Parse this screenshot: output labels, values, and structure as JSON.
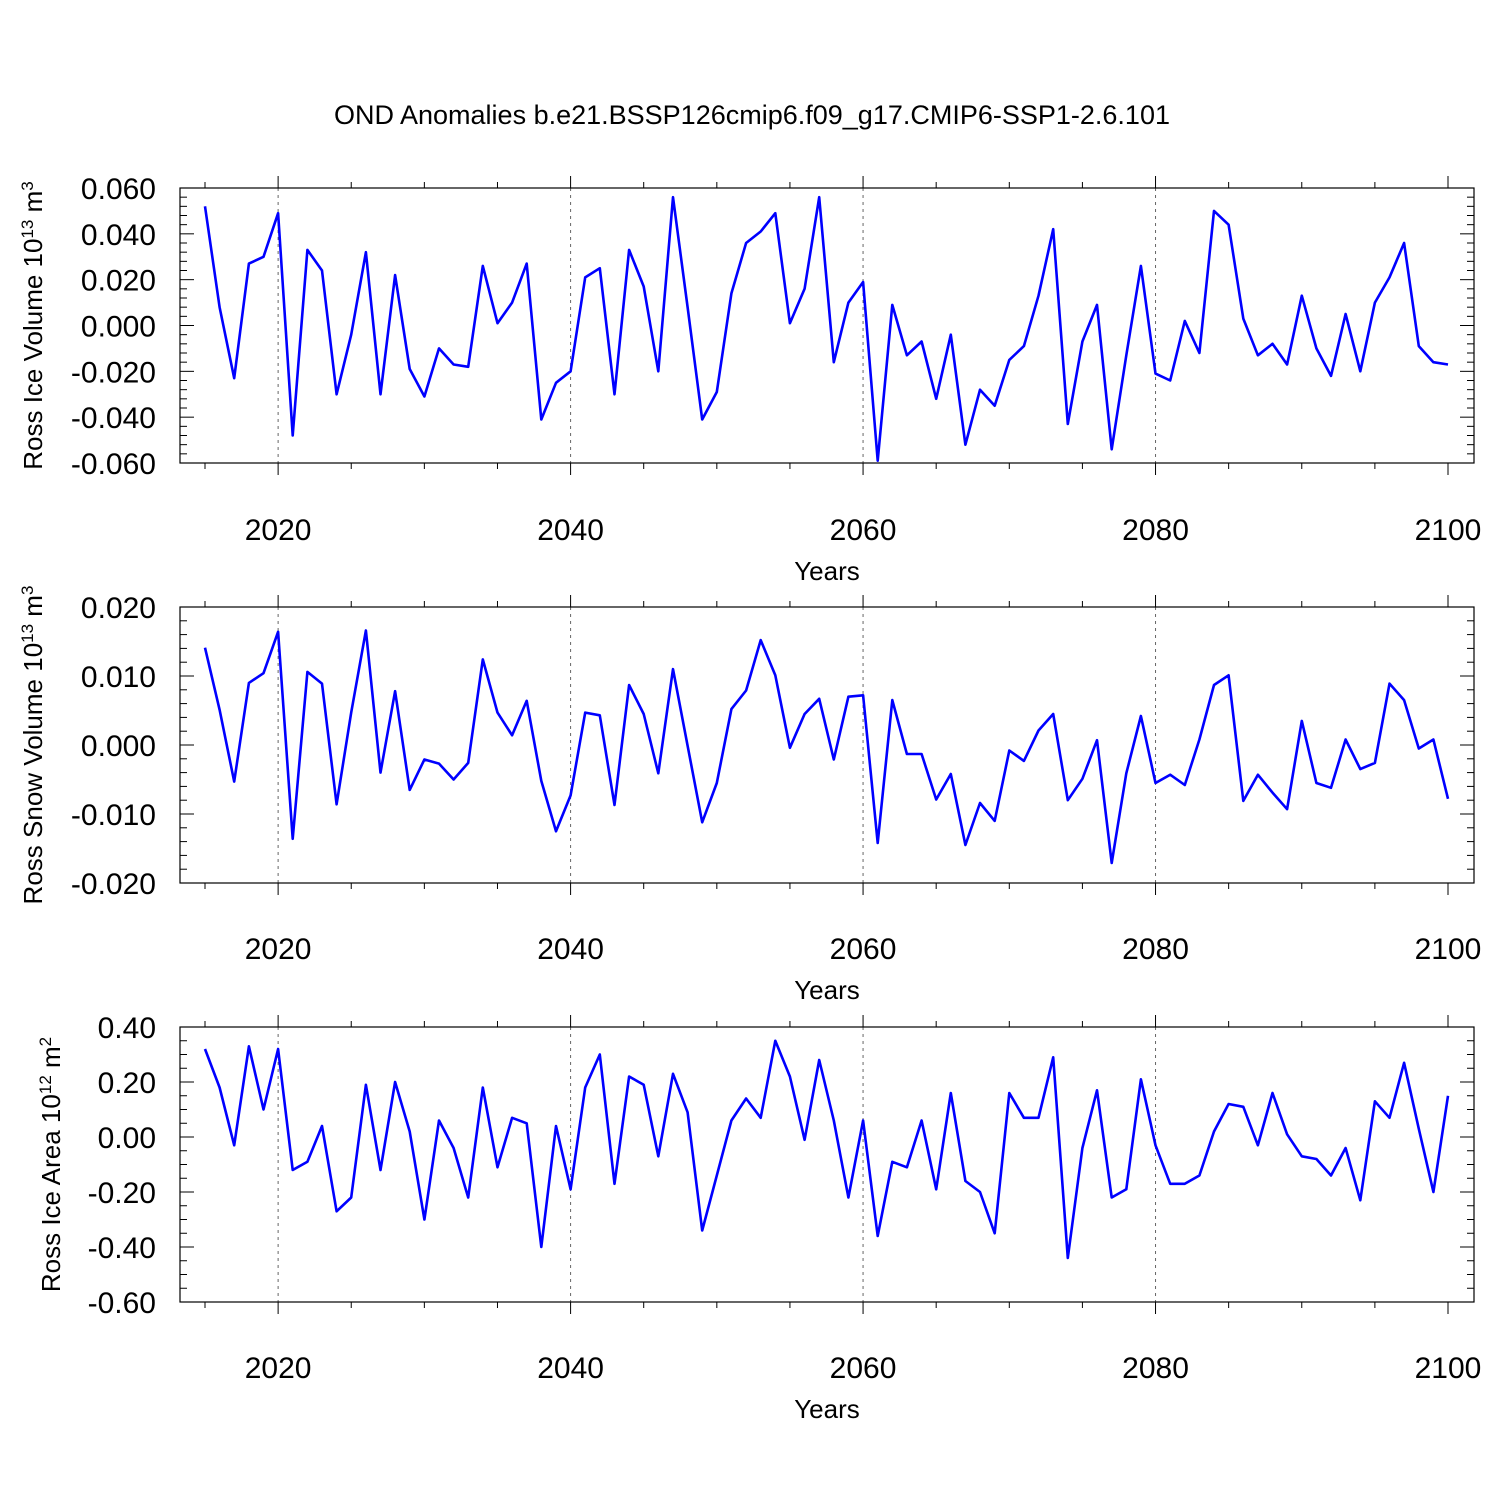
{
  "title": "OND Anomalies b.e21.BSSP126cmip6.f09_g17.CMIP6-SSP1-2.6.101",
  "colors": {
    "line": "#0000ff",
    "axis": "#000000",
    "grid": "#666666",
    "background": "#ffffff"
  },
  "chart_data": [
    {
      "type": "line",
      "ylabel": "Ross Ice Volume 10",
      "ylabel_exp": "13",
      "ylabel_unit": " m",
      "ylabel_unit_exp": "3",
      "xlabel": "Years",
      "xlim": [
        2015,
        2100
      ],
      "ylim": [
        -0.06,
        0.06
      ],
      "yticks": [
        -0.06,
        -0.04,
        -0.02,
        0.0,
        0.02,
        0.04,
        0.06
      ],
      "ytick_labels": [
        "-0.060",
        "-0.040",
        "-0.020",
        "0.000",
        "0.020",
        "0.040",
        "0.060"
      ],
      "xticks": [
        2020,
        2040,
        2060,
        2080,
        2100
      ],
      "xtick_labels": [
        "2020",
        "2040",
        "2060",
        "2080",
        "2100"
      ],
      "grid": "vertical dashed at major x ticks",
      "series": [
        {
          "name": "Ross Ice Volume",
          "x": [
            2015,
            2016,
            2017,
            2018,
            2019,
            2020,
            2021,
            2022,
            2023,
            2024,
            2025,
            2026,
            2027,
            2028,
            2029,
            2030,
            2031,
            2032,
            2033,
            2034,
            2035,
            2036,
            2037,
            2038,
            2039,
            2040,
            2041,
            2042,
            2043,
            2044,
            2045,
            2046,
            2047,
            2048,
            2049,
            2050,
            2051,
            2052,
            2053,
            2054,
            2055,
            2056,
            2057,
            2058,
            2059,
            2060,
            2061,
            2062,
            2063,
            2064,
            2065,
            2066,
            2067,
            2068,
            2069,
            2070,
            2071,
            2072,
            2073,
            2074,
            2075,
            2076,
            2077,
            2078,
            2079,
            2080,
            2081,
            2082,
            2083,
            2084,
            2085,
            2086,
            2087,
            2088,
            2089,
            2090,
            2091,
            2092,
            2093,
            2094,
            2095,
            2096,
            2097,
            2098,
            2099,
            2100
          ],
          "values": [
            0.052,
            0.008,
            -0.023,
            0.027,
            0.03,
            0.049,
            -0.048,
            0.033,
            0.024,
            -0.03,
            -0.004,
            0.032,
            -0.03,
            0.022,
            -0.019,
            -0.031,
            -0.01,
            -0.017,
            -0.018,
            0.026,
            0.001,
            0.01,
            0.027,
            -0.041,
            -0.025,
            -0.02,
            0.021,
            0.025,
            -0.03,
            0.033,
            0.017,
            -0.02,
            0.056,
            0.008,
            -0.041,
            -0.029,
            0.014,
            0.036,
            0.041,
            0.049,
            0.001,
            0.016,
            0.056,
            -0.016,
            0.01,
            0.019,
            -0.059,
            0.009,
            -0.013,
            -0.007,
            -0.032,
            -0.004,
            -0.052,
            -0.028,
            -0.035,
            -0.015,
            -0.009,
            0.013,
            0.042,
            -0.043,
            -0.007,
            0.009,
            -0.054,
            -0.013,
            0.026,
            -0.021,
            -0.024,
            0.002,
            -0.012,
            0.05,
            0.044,
            0.003,
            -0.013,
            -0.008,
            -0.017,
            0.013,
            -0.01,
            -0.022,
            0.005,
            -0.02,
            0.01,
            0.021,
            0.036,
            -0.009,
            -0.016,
            -0.017
          ]
        }
      ]
    },
    {
      "type": "line",
      "ylabel": "Ross Snow Volume 10",
      "ylabel_exp": "13",
      "ylabel_unit": " m",
      "ylabel_unit_exp": "3",
      "xlabel": "Years",
      "xlim": [
        2015,
        2100
      ],
      "ylim": [
        -0.02,
        0.02
      ],
      "yticks": [
        -0.02,
        -0.01,
        0.0,
        0.01,
        0.02
      ],
      "ytick_labels": [
        "-0.020",
        "-0.010",
        "0.000",
        "0.010",
        "0.020"
      ],
      "xticks": [
        2020,
        2040,
        2060,
        2080,
        2100
      ],
      "xtick_labels": [
        "2020",
        "2040",
        "2060",
        "2080",
        "2100"
      ],
      "grid": "vertical dashed at major x ticks",
      "series": [
        {
          "name": "Ross Snow Volume",
          "x": [
            2015,
            2016,
            2017,
            2018,
            2019,
            2020,
            2021,
            2022,
            2023,
            2024,
            2025,
            2026,
            2027,
            2028,
            2029,
            2030,
            2031,
            2032,
            2033,
            2034,
            2035,
            2036,
            2037,
            2038,
            2039,
            2040,
            2041,
            2042,
            2043,
            2044,
            2045,
            2046,
            2047,
            2048,
            2049,
            2050,
            2051,
            2052,
            2053,
            2054,
            2055,
            2056,
            2057,
            2058,
            2059,
            2060,
            2061,
            2062,
            2063,
            2064,
            2065,
            2066,
            2067,
            2068,
            2069,
            2070,
            2071,
            2072,
            2073,
            2074,
            2075,
            2076,
            2077,
            2078,
            2079,
            2080,
            2081,
            2082,
            2083,
            2084,
            2085,
            2086,
            2087,
            2088,
            2089,
            2090,
            2091,
            2092,
            2093,
            2094,
            2095,
            2096,
            2097,
            2098,
            2099,
            2100
          ],
          "values": [
            0.0141,
            0.0051,
            -0.0053,
            0.009,
            0.0104,
            0.0164,
            -0.0136,
            0.0106,
            0.0089,
            -0.0086,
            0.0047,
            0.0166,
            -0.004,
            0.0078,
            -0.0065,
            -0.0021,
            -0.0027,
            -0.005,
            -0.0026,
            0.0124,
            0.0047,
            0.0014,
            0.0064,
            -0.0052,
            -0.0125,
            -0.0073,
            0.0047,
            0.0043,
            -0.0087,
            0.0087,
            0.0045,
            -0.0041,
            0.011,
            -0.0001,
            -0.0112,
            -0.0055,
            0.0052,
            0.0079,
            0.0152,
            0.0101,
            -0.0004,
            0.0045,
            0.0067,
            -0.0021,
            0.007,
            0.0072,
            -0.0142,
            0.0065,
            -0.0013,
            -0.0013,
            -0.0079,
            -0.0042,
            -0.0145,
            -0.0084,
            -0.011,
            -0.0008,
            -0.0023,
            0.0021,
            0.0045,
            -0.008,
            -0.0049,
            0.0007,
            -0.0171,
            -0.0041,
            0.0042,
            -0.0055,
            -0.0043,
            -0.0058,
            0.0008,
            0.0087,
            0.0101,
            -0.0081,
            -0.0043,
            -0.0069,
            -0.0093,
            0.0035,
            -0.0055,
            -0.0062,
            0.0008,
            -0.0035,
            -0.0026,
            0.0089,
            0.0065,
            -0.0005,
            0.0008,
            -0.0078
          ]
        }
      ]
    },
    {
      "type": "line",
      "ylabel": "Ross Ice Area 10",
      "ylabel_exp": "12",
      "ylabel_unit": " m",
      "ylabel_unit_exp": "2",
      "xlabel": "Years",
      "xlim": [
        2015,
        2100
      ],
      "ylim": [
        -0.6,
        0.4
      ],
      "yticks": [
        -0.6,
        -0.4,
        -0.2,
        0.0,
        0.2,
        0.4
      ],
      "ytick_labels": [
        "-0.60",
        "-0.40",
        "-0.20",
        "0.00",
        "0.20",
        "0.40"
      ],
      "xticks": [
        2020,
        2040,
        2060,
        2080,
        2100
      ],
      "xtick_labels": [
        "2020",
        "2040",
        "2060",
        "2080",
        "2100"
      ],
      "grid": "vertical dashed at major x ticks",
      "series": [
        {
          "name": "Ross Ice Area",
          "x": [
            2015,
            2016,
            2017,
            2018,
            2019,
            2020,
            2021,
            2022,
            2023,
            2024,
            2025,
            2026,
            2027,
            2028,
            2029,
            2030,
            2031,
            2032,
            2033,
            2034,
            2035,
            2036,
            2037,
            2038,
            2039,
            2040,
            2041,
            2042,
            2043,
            2044,
            2045,
            2046,
            2047,
            2048,
            2049,
            2050,
            2051,
            2052,
            2053,
            2054,
            2055,
            2056,
            2057,
            2058,
            2059,
            2060,
            2061,
            2062,
            2063,
            2064,
            2065,
            2066,
            2067,
            2068,
            2069,
            2070,
            2071,
            2072,
            2073,
            2074,
            2075,
            2076,
            2077,
            2078,
            2079,
            2080,
            2081,
            2082,
            2083,
            2084,
            2085,
            2086,
            2087,
            2088,
            2089,
            2090,
            2091,
            2092,
            2093,
            2094,
            2095,
            2096,
            2097,
            2098,
            2099,
            2100
          ],
          "values": [
            0.32,
            0.18,
            -0.03,
            0.33,
            0.1,
            0.32,
            -0.12,
            -0.09,
            0.04,
            -0.27,
            -0.22,
            0.19,
            -0.12,
            0.2,
            0.02,
            -0.3,
            0.06,
            -0.04,
            -0.22,
            0.18,
            -0.11,
            0.07,
            0.05,
            -0.4,
            0.04,
            -0.19,
            0.18,
            0.3,
            -0.17,
            0.22,
            0.19,
            -0.07,
            0.23,
            0.09,
            -0.34,
            -0.14,
            0.06,
            0.14,
            0.07,
            0.35,
            0.22,
            -0.01,
            0.28,
            0.06,
            -0.22,
            0.06,
            -0.36,
            -0.09,
            -0.11,
            0.06,
            -0.19,
            0.16,
            -0.16,
            -0.2,
            -0.35,
            0.16,
            0.07,
            0.07,
            0.29,
            -0.44,
            -0.04,
            0.17,
            -0.22,
            -0.19,
            0.21,
            -0.03,
            -0.17,
            -0.17,
            -0.14,
            0.02,
            0.12,
            0.11,
            -0.03,
            0.16,
            0.01,
            -0.07,
            -0.08,
            -0.14,
            -0.04,
            -0.23,
            0.13,
            0.07,
            0.27,
            0.03,
            -0.2,
            0.15
          ]
        }
      ]
    }
  ]
}
